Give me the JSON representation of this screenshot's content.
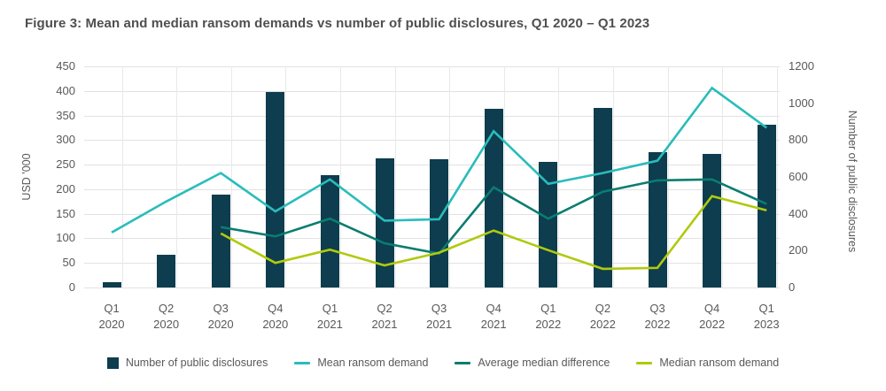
{
  "figure": {
    "title": "Figure 3: Mean and median ransom demands vs number of public disclosures, Q1 2020 – Q1 2023"
  },
  "chart_data": {
    "type": "combo-bar-line",
    "categories": [
      "Q1 2020",
      "Q2 2020",
      "Q3 2020",
      "Q4 2020",
      "Q1 2021",
      "Q2 2021",
      "Q3 2021",
      "Q4 2021",
      "Q1 2022",
      "Q2 2022",
      "Q3 2022",
      "Q4 2022",
      "Q1 2023"
    ],
    "bars": {
      "name": "Number of public disclosures",
      "axis": "right",
      "color": "#0d3d4e",
      "values": [
        30,
        180,
        505,
        1060,
        610,
        700,
        695,
        970,
        680,
        975,
        735,
        725,
        885
      ]
    },
    "series": [
      {
        "name": "Mean ransom demand",
        "axis": "left",
        "color": "#2abcbc",
        "values": [
          112,
          175,
          233,
          155,
          220,
          136,
          139,
          318,
          211,
          233,
          258,
          406,
          325
        ]
      },
      {
        "name": "Average median difference",
        "axis": "left",
        "color": "#0a7d71",
        "values": [
          null,
          null,
          123,
          104,
          140,
          90,
          69,
          204,
          140,
          195,
          218,
          220,
          170
        ]
      },
      {
        "name": "Median ransom demand",
        "axis": "left",
        "color": "#b1c90e",
        "values": [
          null,
          null,
          110,
          50,
          77,
          45,
          71,
          116,
          76,
          38,
          40,
          186,
          157
        ]
      }
    ],
    "left_axis": {
      "label": "USD '000",
      "min": 0,
      "max": 450,
      "step": 50
    },
    "right_axis": {
      "label": "Number of public disclosures",
      "min": 0,
      "max": 1200,
      "step": 200
    },
    "grid": true,
    "legend_position": "bottom",
    "text_color": "#595959",
    "grid_color": "#e2e2e2"
  }
}
